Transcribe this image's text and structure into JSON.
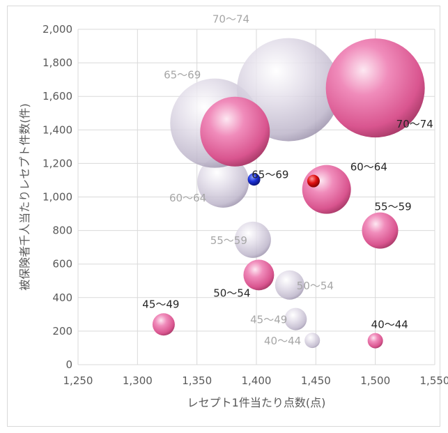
{
  "chart_data": {
    "type": "bubble",
    "xlabel": "レセプト1件当たり点数(点)",
    "ylabel": "被保険者千人当たりレセプト件数(件)",
    "xlim": [
      1250,
      1550
    ],
    "ylim": [
      0,
      2000
    ],
    "x_ticks": [
      "1,250",
      "1,300",
      "1,350",
      "1,400",
      "1,450",
      "1,500",
      "1,550"
    ],
    "y_ticks": [
      "0",
      "200",
      "400",
      "600",
      "800",
      "1,000",
      "1,200",
      "1,400",
      "1,600",
      "1,800",
      "2,000"
    ],
    "grid": true,
    "colors": {
      "pink": "#e8609e",
      "gray": "#c4bdd0",
      "blue": "#1a2fd6",
      "red": "#e01010",
      "label_gray": "#a6a6a6",
      "label_dark": "#262626"
    },
    "series": [
      {
        "style": "gray",
        "points": [
          {
            "label": "40〜44",
            "x": 1447,
            "y": 145,
            "size": 11
          },
          {
            "label": "45〜49",
            "x": 1433,
            "y": 272,
            "size": 16
          },
          {
            "label": "50〜54",
            "x": 1428,
            "y": 475,
            "size": 21
          },
          {
            "label": "55〜59",
            "x": 1397,
            "y": 745,
            "size": 26
          },
          {
            "label": "60〜64",
            "x": 1372,
            "y": 1090,
            "size": 37
          },
          {
            "label": "65〜69",
            "x": 1365,
            "y": 1440,
            "size": 64
          },
          {
            "label": "70〜74",
            "x": 1427,
            "y": 1640,
            "size": 74
          }
        ]
      },
      {
        "style": "pink",
        "points": [
          {
            "label": "40〜44",
            "x": 1500,
            "y": 143,
            "size": 11
          },
          {
            "label": "45〜49",
            "x": 1322,
            "y": 240,
            "size": 16
          },
          {
            "label": "50〜54",
            "x": 1402,
            "y": 535,
            "size": 22
          },
          {
            "label": "55〜59",
            "x": 1504,
            "y": 800,
            "size": 26
          },
          {
            "label": "60〜64",
            "x": 1459,
            "y": 1045,
            "size": 35
          },
          {
            "label": "65〜69",
            "x": 1382,
            "y": 1390,
            "size": 50
          },
          {
            "label": "70〜74",
            "x": 1500,
            "y": 1650,
            "size": 71
          }
        ]
      },
      {
        "style": "blue",
        "points": [
          {
            "label": "",
            "x": 1398,
            "y": 1105,
            "size": 9
          }
        ]
      },
      {
        "style": "red",
        "points": [
          {
            "label": "",
            "x": 1448,
            "y": 1095,
            "size": 9
          }
        ]
      }
    ]
  }
}
